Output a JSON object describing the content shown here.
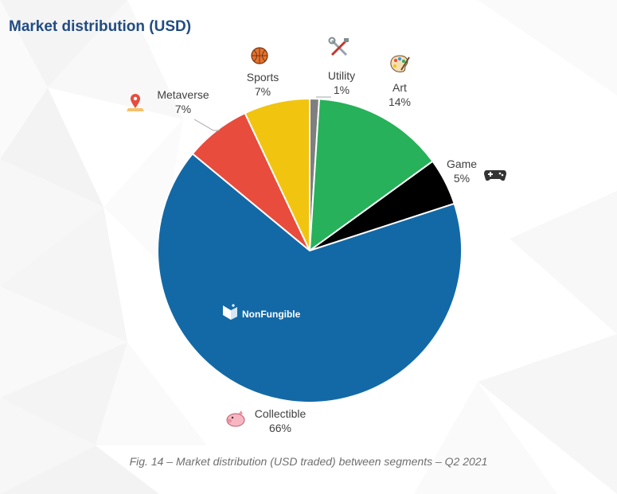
{
  "page": {
    "title": "Market distribution (USD)",
    "caption": "Fig. 14 – Market distribution (USD traded) between segments – Q2 2021"
  },
  "brand": {
    "name": "NonFungible"
  },
  "chart_data": {
    "type": "pie",
    "title": "Market distribution (USD)",
    "start_angle_deg": 0,
    "direction": "clockwise",
    "slices": [
      {
        "name": "Utility",
        "value": 1,
        "label": "1%",
        "color": "#7f7f7f",
        "icon": "tools-icon"
      },
      {
        "name": "Art",
        "value": 14,
        "label": "14%",
        "color": "#27b15a",
        "icon": "palette-icon"
      },
      {
        "name": "Game",
        "value": 5,
        "label": "5%",
        "color": "#000000",
        "icon": "gamepad-icon"
      },
      {
        "name": "Collectible",
        "value": 66,
        "label": "66%",
        "color": "#1369a6",
        "icon": "pig-icon"
      },
      {
        "name": "Metaverse",
        "value": 7,
        "label": "7%",
        "color": "#e84c3d",
        "icon": "map-pin-icon"
      },
      {
        "name": "Sports",
        "value": 7,
        "label": "7%",
        "color": "#f1c40f",
        "icon": "basketball-icon"
      }
    ]
  }
}
